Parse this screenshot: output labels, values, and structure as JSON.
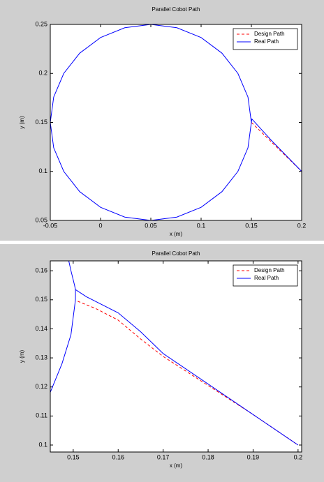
{
  "chart_data": [
    {
      "type": "line",
      "title": "Parallel Cobot Path",
      "x_label": "x (m)",
      "y_label": "y (m)",
      "xlim": [
        -0.05,
        0.2
      ],
      "ylim": [
        0.05,
        0.25
      ],
      "xticks": [
        -0.05,
        0,
        0.05,
        0.1,
        0.15,
        0.2
      ],
      "yticks": [
        0.05,
        0.1,
        0.15,
        0.2,
        0.25
      ],
      "legend": "upper right",
      "series": [
        {
          "name": "Design Path",
          "color": "#ff0000",
          "dash": true,
          "x": [
            0.15,
            0.2
          ],
          "y": [
            0.15,
            0.1
          ]
        },
        {
          "name": "Real Path",
          "color": "#0000ff",
          "dash": false,
          "x": [
            0.15,
            0.1466,
            0.1366,
            0.1207,
            0.1,
            0.0759,
            0.05,
            0.0241,
            0,
            -0.0207,
            -0.0366,
            -0.0466,
            -0.05,
            -0.0466,
            -0.0366,
            -0.0207,
            0,
            0.0241,
            0.05,
            0.0759,
            0.1,
            0.1207,
            0.1366,
            0.1466,
            0.15,
            0.1505,
            0.17,
            0.2
          ],
          "y": [
            0.15,
            0.1759,
            0.2,
            0.2207,
            0.2366,
            0.2466,
            0.25,
            0.2466,
            0.2366,
            0.2207,
            0.2,
            0.1759,
            0.15,
            0.1241,
            0.1,
            0.0793,
            0.0634,
            0.0534,
            0.05,
            0.0534,
            0.0634,
            0.0793,
            0.1,
            0.1241,
            0.15,
            0.1535,
            0.1315,
            0.1
          ]
        }
      ]
    },
    {
      "type": "line",
      "title": "Parallel Cobot Path",
      "x_label": "x (m)",
      "y_label": "y (m)",
      "xlim": [
        0.1449,
        0.2008
      ],
      "ylim": [
        0.0976,
        0.1634
      ],
      "xticks": [
        0.15,
        0.16,
        0.17,
        0.18,
        0.19,
        0.2
      ],
      "yticks": [
        0.1,
        0.11,
        0.12,
        0.13,
        0.14,
        0.15,
        0.16
      ],
      "legend": "upper right",
      "series": [
        {
          "name": "Design Path",
          "color": "#ff0000",
          "dash": true,
          "x": [
            0.151,
            0.155,
            0.16,
            0.165,
            0.17,
            0.18,
            0.19,
            0.2
          ],
          "y": [
            0.1495,
            0.147,
            0.143,
            0.1365,
            0.1305,
            0.1205,
            0.1105,
            0.1
          ]
        },
        {
          "name": "Real Path",
          "color": "#0000ff",
          "dash": false,
          "x": [
            0.149,
            0.1495,
            0.1503,
            0.1505,
            null,
            0.1446,
            0.1475,
            0.1495,
            0.1505,
            0.1505,
            0.153,
            0.16,
            0.165,
            0.17,
            0.18,
            0.19,
            0.2
          ],
          "y": [
            0.1635,
            0.16,
            0.155,
            0.1535,
            null,
            0.117,
            0.128,
            0.138,
            0.15,
            0.1535,
            0.151,
            0.1455,
            0.139,
            0.1315,
            0.121,
            0.1105,
            0.1
          ]
        }
      ]
    }
  ]
}
